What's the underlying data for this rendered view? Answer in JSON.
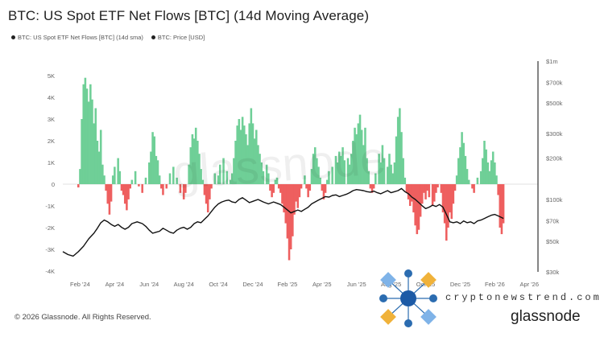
{
  "title": "BTC: US Spot ETF Net Flows [BTC] (14d Moving Average)",
  "legend": [
    {
      "label": "BTC: US Spot ETF Net Flows [BTC] (14d sma)",
      "color": "#222222"
    },
    {
      "label": "BTC: Price [USD]",
      "color": "#222222"
    }
  ],
  "footer": "© 2026 Glassnode. All Rights Reserved.",
  "brand": "glassnode",
  "watermark": "glassnode",
  "site_overlay": "cryptonewstrend.com",
  "colors": {
    "positive": "#6fcf97",
    "negative": "#ee5f5f",
    "price": "#111111"
  },
  "chart_data": {
    "type": "bar",
    "y_left": {
      "ticks": [
        "5K",
        "4K",
        "3K",
        "2K",
        "1K",
        "0",
        "-1K",
        "-2K",
        "-3K",
        "-4K"
      ],
      "range": [
        -4000,
        5000
      ]
    },
    "y_right": {
      "ticks": [
        "$1m",
        "$700k",
        "$500k",
        "$300k",
        "$200k",
        "$100k",
        "$70k",
        "$50k",
        "$30k"
      ],
      "scale": "log",
      "range": [
        30000,
        1000000
      ]
    },
    "x_ticks": [
      "Feb '24",
      "Apr '24",
      "Jun '24",
      "Aug '24",
      "Oct '24",
      "Dec '24",
      "Feb '25",
      "Apr '25",
      "Jun '25",
      "Aug '25",
      "Oct '25",
      "Dec '25",
      "Feb '26",
      "Apr '26"
    ],
    "x_range_months": [
      0,
      27.5
    ],
    "flows": [
      {
        "t": 0.9,
        "v": -150
      },
      {
        "t": 1.0,
        "v": 700
      },
      {
        "t": 1.1,
        "v": 3000
      },
      {
        "t": 1.2,
        "v": 4600
      },
      {
        "t": 1.3,
        "v": 4900
      },
      {
        "t": 1.4,
        "v": 4400
      },
      {
        "t": 1.5,
        "v": 3800
      },
      {
        "t": 1.6,
        "v": 4600
      },
      {
        "t": 1.7,
        "v": 3900
      },
      {
        "t": 1.8,
        "v": 2800
      },
      {
        "t": 1.9,
        "v": 3500
      },
      {
        "t": 2.0,
        "v": 2000
      },
      {
        "t": 2.1,
        "v": 1500
      },
      {
        "t": 2.2,
        "v": 2500
      },
      {
        "t": 2.3,
        "v": 900
      },
      {
        "t": 2.4,
        "v": 400
      },
      {
        "t": 2.5,
        "v": -300
      },
      {
        "t": 2.6,
        "v": -900
      },
      {
        "t": 2.7,
        "v": -1400
      },
      {
        "t": 2.8,
        "v": -800
      },
      {
        "t": 2.9,
        "v": 400
      },
      {
        "t": 3.0,
        "v": 800
      },
      {
        "t": 3.2,
        "v": 1200
      },
      {
        "t": 3.3,
        "v": 600
      },
      {
        "t": 3.4,
        "v": -300
      },
      {
        "t": 3.5,
        "v": -500
      },
      {
        "t": 3.6,
        "v": -900
      },
      {
        "t": 3.7,
        "v": -1200
      },
      {
        "t": 3.8,
        "v": -700
      },
      {
        "t": 3.9,
        "v": -200
      },
      {
        "t": 4.0,
        "v": 200
      },
      {
        "t": 4.2,
        "v": 600
      },
      {
        "t": 4.4,
        "v": -100
      },
      {
        "t": 4.6,
        "v": -400
      },
      {
        "t": 4.8,
        "v": 300
      },
      {
        "t": 5.0,
        "v": 1000
      },
      {
        "t": 5.1,
        "v": 1500
      },
      {
        "t": 5.2,
        "v": 2400
      },
      {
        "t": 5.3,
        "v": 2200
      },
      {
        "t": 5.4,
        "v": 1300
      },
      {
        "t": 5.5,
        "v": 1100
      },
      {
        "t": 5.6,
        "v": 400
      },
      {
        "t": 5.7,
        "v": -200
      },
      {
        "t": 5.8,
        "v": -500
      },
      {
        "t": 6.0,
        "v": -200
      },
      {
        "t": 6.2,
        "v": 500
      },
      {
        "t": 6.4,
        "v": 800
      },
      {
        "t": 6.6,
        "v": 300
      },
      {
        "t": 6.8,
        "v": -400
      },
      {
        "t": 7.0,
        "v": -700
      },
      {
        "t": 7.1,
        "v": -400
      },
      {
        "t": 7.3,
        "v": 900
      },
      {
        "t": 7.4,
        "v": 1700
      },
      {
        "t": 7.5,
        "v": 2300
      },
      {
        "t": 7.6,
        "v": 2100
      },
      {
        "t": 7.7,
        "v": 2600
      },
      {
        "t": 7.8,
        "v": 2000
      },
      {
        "t": 7.9,
        "v": 1400
      },
      {
        "t": 8.0,
        "v": 700
      },
      {
        "t": 8.1,
        "v": 200
      },
      {
        "t": 8.2,
        "v": -500
      },
      {
        "t": 8.3,
        "v": -900
      },
      {
        "t": 8.4,
        "v": -1300
      },
      {
        "t": 8.5,
        "v": -700
      },
      {
        "t": 8.6,
        "v": -200
      },
      {
        "t": 8.8,
        "v": 500
      },
      {
        "t": 9.0,
        "v": 400
      },
      {
        "t": 9.1,
        "v": 900
      },
      {
        "t": 9.3,
        "v": 1200
      },
      {
        "t": 9.5,
        "v": 600
      },
      {
        "t": 9.7,
        "v": 200
      },
      {
        "t": 9.8,
        "v": 500
      },
      {
        "t": 9.9,
        "v": 1200
      },
      {
        "t": 10.0,
        "v": 2000
      },
      {
        "t": 10.1,
        "v": 2700
      },
      {
        "t": 10.2,
        "v": 3000
      },
      {
        "t": 10.3,
        "v": 2500
      },
      {
        "t": 10.4,
        "v": 3100
      },
      {
        "t": 10.5,
        "v": 2700
      },
      {
        "t": 10.6,
        "v": 2300
      },
      {
        "t": 10.7,
        "v": 1800
      },
      {
        "t": 10.8,
        "v": 2800
      },
      {
        "t": 10.9,
        "v": 3500
      },
      {
        "t": 11.0,
        "v": 2800
      },
      {
        "t": 11.1,
        "v": 2100
      },
      {
        "t": 11.2,
        "v": 2500
      },
      {
        "t": 11.3,
        "v": 1800
      },
      {
        "t": 11.4,
        "v": 1400
      },
      {
        "t": 11.5,
        "v": 1000
      },
      {
        "t": 11.6,
        "v": 600
      },
      {
        "t": 11.8,
        "v": 900
      },
      {
        "t": 11.9,
        "v": 500
      },
      {
        "t": 12.0,
        "v": -300
      },
      {
        "t": 12.1,
        "v": -600
      },
      {
        "t": 12.2,
        "v": -400
      },
      {
        "t": 12.3,
        "v": 200
      },
      {
        "t": 12.4,
        "v": 300
      },
      {
        "t": 12.5,
        "v": -200
      },
      {
        "t": 12.6,
        "v": -400
      },
      {
        "t": 12.7,
        "v": -900
      },
      {
        "t": 12.8,
        "v": -1300
      },
      {
        "t": 12.9,
        "v": -1800
      },
      {
        "t": 13.0,
        "v": -2500
      },
      {
        "t": 13.1,
        "v": -3500
      },
      {
        "t": 13.2,
        "v": -3000
      },
      {
        "t": 13.3,
        "v": -2400
      },
      {
        "t": 13.4,
        "v": -1400
      },
      {
        "t": 13.5,
        "v": -800
      },
      {
        "t": 13.6,
        "v": -1100
      },
      {
        "t": 13.7,
        "v": -600
      },
      {
        "t": 13.8,
        "v": -200
      },
      {
        "t": 14.0,
        "v": 400
      },
      {
        "t": 14.1,
        "v": -200
      },
      {
        "t": 14.2,
        "v": -600
      },
      {
        "t": 14.3,
        "v": -300
      },
      {
        "t": 14.4,
        "v": 700
      },
      {
        "t": 14.5,
        "v": 1400
      },
      {
        "t": 14.6,
        "v": 1700
      },
      {
        "t": 14.7,
        "v": 1200
      },
      {
        "t": 14.8,
        "v": 800
      },
      {
        "t": 14.9,
        "v": 300
      },
      {
        "t": 15.0,
        "v": -300
      },
      {
        "t": 15.1,
        "v": -700
      },
      {
        "t": 15.2,
        "v": -400
      },
      {
        "t": 15.3,
        "v": 200
      },
      {
        "t": 15.4,
        "v": 600
      },
      {
        "t": 15.6,
        "v": 800
      },
      {
        "t": 15.8,
        "v": 1300
      },
      {
        "t": 15.9,
        "v": 1000
      },
      {
        "t": 16.0,
        "v": 1500
      },
      {
        "t": 16.1,
        "v": 1300
      },
      {
        "t": 16.2,
        "v": 1700
      },
      {
        "t": 16.3,
        "v": 1100
      },
      {
        "t": 16.5,
        "v": 1200
      },
      {
        "t": 16.6,
        "v": 900
      },
      {
        "t": 16.7,
        "v": 1400
      },
      {
        "t": 16.8,
        "v": 2000
      },
      {
        "t": 16.9,
        "v": 2600
      },
      {
        "t": 17.0,
        "v": 2300
      },
      {
        "t": 17.1,
        "v": 2800
      },
      {
        "t": 17.2,
        "v": 3200
      },
      {
        "t": 17.3,
        "v": 2500
      },
      {
        "t": 17.4,
        "v": 1800
      },
      {
        "t": 17.5,
        "v": 2600
      },
      {
        "t": 17.6,
        "v": 1200
      },
      {
        "t": 17.7,
        "v": 600
      },
      {
        "t": 17.8,
        "v": -200
      },
      {
        "t": 17.9,
        "v": -400
      },
      {
        "t": 18.0,
        "v": -200
      },
      {
        "t": 18.1,
        "v": 500
      },
      {
        "t": 18.3,
        "v": 1400
      },
      {
        "t": 18.4,
        "v": 1000
      },
      {
        "t": 18.5,
        "v": 1800
      },
      {
        "t": 18.6,
        "v": 1200
      },
      {
        "t": 18.8,
        "v": 800
      },
      {
        "t": 18.9,
        "v": 1400
      },
      {
        "t": 19.0,
        "v": 900
      },
      {
        "t": 19.1,
        "v": 500
      },
      {
        "t": 19.2,
        "v": 1000
      },
      {
        "t": 19.3,
        "v": 2200
      },
      {
        "t": 19.4,
        "v": 3100
      },
      {
        "t": 19.5,
        "v": 3500
      },
      {
        "t": 19.6,
        "v": 2400
      },
      {
        "t": 19.7,
        "v": 1200
      },
      {
        "t": 19.8,
        "v": 300
      },
      {
        "t": 19.9,
        "v": -400
      },
      {
        "t": 20.0,
        "v": -700
      },
      {
        "t": 20.1,
        "v": -1000
      },
      {
        "t": 20.2,
        "v": -800
      },
      {
        "t": 20.3,
        "v": -1300
      },
      {
        "t": 20.4,
        "v": -1900
      },
      {
        "t": 20.5,
        "v": -2300
      },
      {
        "t": 20.6,
        "v": -2100
      },
      {
        "t": 20.7,
        "v": -1500
      },
      {
        "t": 20.8,
        "v": -900
      },
      {
        "t": 20.9,
        "v": -400
      },
      {
        "t": 21.0,
        "v": -700
      },
      {
        "t": 21.1,
        "v": -300
      },
      {
        "t": 21.2,
        "v": -600
      },
      {
        "t": 21.4,
        "v": -1000
      },
      {
        "t": 21.5,
        "v": -800
      },
      {
        "t": 21.6,
        "v": -400
      },
      {
        "t": 21.7,
        "v": -150
      },
      {
        "t": 21.9,
        "v": -400
      },
      {
        "t": 22.0,
        "v": -1300
      },
      {
        "t": 22.1,
        "v": -1800
      },
      {
        "t": 22.2,
        "v": -2600
      },
      {
        "t": 22.3,
        "v": -2000
      },
      {
        "t": 22.4,
        "v": -1300
      },
      {
        "t": 22.5,
        "v": -1600
      },
      {
        "t": 22.6,
        "v": -900
      },
      {
        "t": 22.7,
        "v": -300
      },
      {
        "t": 22.8,
        "v": 400
      },
      {
        "t": 22.9,
        "v": 1200
      },
      {
        "t": 23.0,
        "v": 1700
      },
      {
        "t": 23.1,
        "v": 2400
      },
      {
        "t": 23.2,
        "v": 1900
      },
      {
        "t": 23.3,
        "v": 1300
      },
      {
        "t": 23.4,
        "v": 700
      },
      {
        "t": 23.5,
        "v": 200
      },
      {
        "t": 23.7,
        "v": -200
      },
      {
        "t": 23.8,
        "v": -400
      },
      {
        "t": 24.0,
        "v": 300
      },
      {
        "t": 24.2,
        "v": 600
      },
      {
        "t": 24.3,
        "v": 1200
      },
      {
        "t": 24.4,
        "v": 2000
      },
      {
        "t": 24.5,
        "v": 1600
      },
      {
        "t": 24.6,
        "v": 1000
      },
      {
        "t": 24.7,
        "v": 600
      },
      {
        "t": 24.8,
        "v": 1100
      },
      {
        "t": 24.9,
        "v": 1500
      },
      {
        "t": 25.0,
        "v": 1000
      },
      {
        "t": 25.1,
        "v": 400
      },
      {
        "t": 25.2,
        "v": -500
      },
      {
        "t": 25.3,
        "v": -2000
      },
      {
        "t": 25.4,
        "v": -2300
      },
      {
        "t": 25.5,
        "v": -1800
      }
    ],
    "price": [
      [
        0.0,
        42000
      ],
      [
        0.3,
        40000
      ],
      [
        0.6,
        39000
      ],
      [
        0.9,
        42000
      ],
      [
        1.2,
        46000
      ],
      [
        1.5,
        52000
      ],
      [
        1.8,
        57000
      ],
      [
        2.0,
        62000
      ],
      [
        2.2,
        68000
      ],
      [
        2.4,
        71000
      ],
      [
        2.6,
        69000
      ],
      [
        2.8,
        66000
      ],
      [
        3.0,
        64000
      ],
      [
        3.2,
        66000
      ],
      [
        3.4,
        63000
      ],
      [
        3.6,
        61000
      ],
      [
        3.8,
        63000
      ],
      [
        4.0,
        67000
      ],
      [
        4.3,
        69000
      ],
      [
        4.6,
        67000
      ],
      [
        4.8,
        64000
      ],
      [
        5.0,
        60000
      ],
      [
        5.2,
        57000
      ],
      [
        5.4,
        58000
      ],
      [
        5.6,
        59000
      ],
      [
        5.8,
        62000
      ],
      [
        6.0,
        60000
      ],
      [
        6.2,
        58000
      ],
      [
        6.4,
        57000
      ],
      [
        6.6,
        60000
      ],
      [
        6.8,
        62000
      ],
      [
        7.0,
        63000
      ],
      [
        7.2,
        61000
      ],
      [
        7.4,
        63000
      ],
      [
        7.6,
        67000
      ],
      [
        7.8,
        69000
      ],
      [
        8.0,
        68000
      ],
      [
        8.2,
        72000
      ],
      [
        8.4,
        76000
      ],
      [
        8.6,
        82000
      ],
      [
        8.8,
        88000
      ],
      [
        9.0,
        93000
      ],
      [
        9.2,
        96000
      ],
      [
        9.4,
        98000
      ],
      [
        9.6,
        99000
      ],
      [
        9.8,
        96000
      ],
      [
        10.0,
        95000
      ],
      [
        10.2,
        100000
      ],
      [
        10.4,
        103000
      ],
      [
        10.6,
        99000
      ],
      [
        10.8,
        95000
      ],
      [
        11.0,
        97000
      ],
      [
        11.3,
        100000
      ],
      [
        11.6,
        96000
      ],
      [
        11.9,
        93000
      ],
      [
        12.2,
        96000
      ],
      [
        12.4,
        94000
      ],
      [
        12.6,
        92000
      ],
      [
        12.8,
        88000
      ],
      [
        13.0,
        84000
      ],
      [
        13.2,
        80000
      ],
      [
        13.4,
        82000
      ],
      [
        13.6,
        84000
      ],
      [
        13.8,
        82000
      ],
      [
        14.0,
        85000
      ],
      [
        14.2,
        88000
      ],
      [
        14.4,
        93000
      ],
      [
        14.6,
        96000
      ],
      [
        14.8,
        99000
      ],
      [
        15.0,
        102000
      ],
      [
        15.2,
        105000
      ],
      [
        15.4,
        104000
      ],
      [
        15.6,
        107000
      ],
      [
        15.8,
        108000
      ],
      [
        16.0,
        105000
      ],
      [
        16.2,
        107000
      ],
      [
        16.4,
        109000
      ],
      [
        16.6,
        112000
      ],
      [
        16.8,
        116000
      ],
      [
        17.0,
        118000
      ],
      [
        17.2,
        117000
      ],
      [
        17.4,
        116000
      ],
      [
        17.6,
        114000
      ],
      [
        17.8,
        113000
      ],
      [
        18.0,
        115000
      ],
      [
        18.2,
        112000
      ],
      [
        18.4,
        110000
      ],
      [
        18.6,
        113000
      ],
      [
        18.8,
        116000
      ],
      [
        19.0,
        112000
      ],
      [
        19.2,
        114000
      ],
      [
        19.4,
        116000
      ],
      [
        19.6,
        120000
      ],
      [
        19.8,
        114000
      ],
      [
        20.0,
        110000
      ],
      [
        20.2,
        104000
      ],
      [
        20.4,
        100000
      ],
      [
        20.6,
        95000
      ],
      [
        20.8,
        90000
      ],
      [
        21.0,
        86000
      ],
      [
        21.2,
        88000
      ],
      [
        21.4,
        91000
      ],
      [
        21.6,
        89000
      ],
      [
        21.8,
        92000
      ],
      [
        22.0,
        88000
      ],
      [
        22.2,
        78000
      ],
      [
        22.4,
        69000
      ],
      [
        22.6,
        68000
      ],
      [
        22.8,
        69000
      ],
      [
        23.0,
        67000
      ],
      [
        23.2,
        70000
      ],
      [
        23.4,
        68000
      ],
      [
        23.6,
        69000
      ],
      [
        23.8,
        67000
      ],
      [
        24.0,
        70000
      ],
      [
        24.2,
        71000
      ],
      [
        24.4,
        73000
      ],
      [
        24.6,
        75000
      ],
      [
        24.8,
        77000
      ],
      [
        25.0,
        78000
      ],
      [
        25.2,
        76000
      ],
      [
        25.4,
        74000
      ],
      [
        25.5,
        73000
      ]
    ]
  }
}
